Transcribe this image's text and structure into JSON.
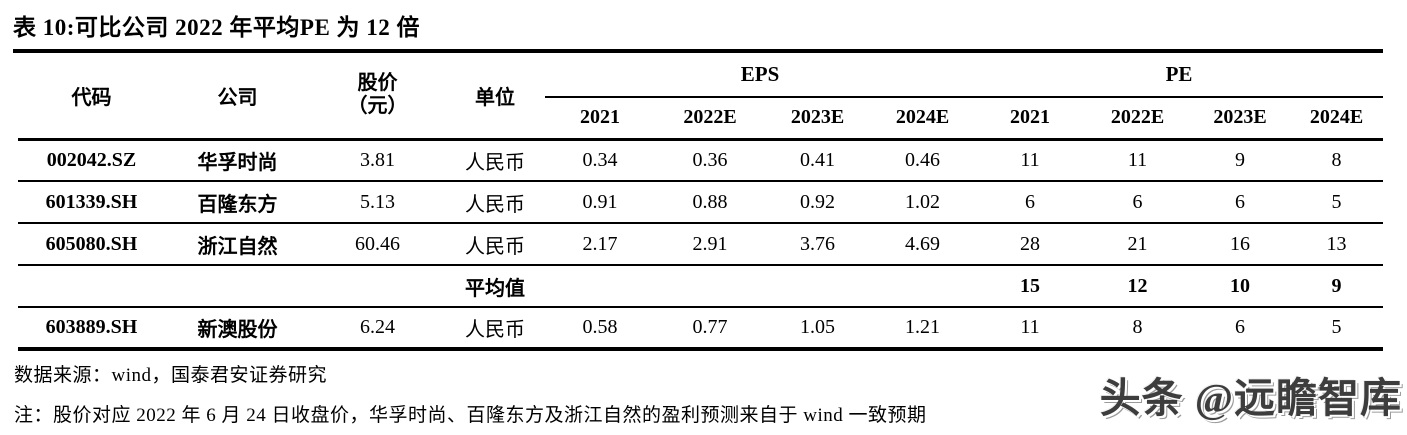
{
  "title": "表 10:可比公司 2022 年平均PE 为 12 倍",
  "table": {
    "headers": {
      "code": "代码",
      "company": "公司",
      "price_line1": "股价",
      "price_line2": "（元）",
      "unit": "单位",
      "eps_group": "EPS",
      "pe_group": "PE",
      "years": [
        "2021",
        "2022E",
        "2023E",
        "2024E"
      ]
    },
    "rows": [
      {
        "code": "002042.SZ",
        "company": "华孚时尚",
        "price": "3.81",
        "unit": "人民币",
        "eps": [
          "0.34",
          "0.36",
          "0.41",
          "0.46"
        ],
        "pe": [
          "11",
          "11",
          "9",
          "8"
        ]
      },
      {
        "code": "601339.SH",
        "company": "百隆东方",
        "price": "5.13",
        "unit": "人民币",
        "eps": [
          "0.91",
          "0.88",
          "0.92",
          "1.02"
        ],
        "pe": [
          "6",
          "6",
          "6",
          "5"
        ]
      },
      {
        "code": "605080.SH",
        "company": "浙江自然",
        "price": "60.46",
        "unit": "人民币",
        "eps": [
          "2.17",
          "2.91",
          "3.76",
          "4.69"
        ],
        "pe": [
          "28",
          "21",
          "16",
          "13"
        ]
      }
    ],
    "average_row": {
      "label": "平均值",
      "pe": [
        "15",
        "12",
        "10",
        "9"
      ]
    },
    "extra_row": {
      "code": "603889.SH",
      "company": "新澳股份",
      "price": "6.24",
      "unit": "人民币",
      "eps": [
        "0.58",
        "0.77",
        "1.05",
        "1.21"
      ],
      "pe": [
        "11",
        "8",
        "6",
        "5"
      ]
    }
  },
  "footer": {
    "source": "数据来源：wind，国泰君安证券研究",
    "note": "注：股价对应 2022 年 6 月 24 日收盘价，华孚时尚、百隆东方及浙江自然的盈利预测来自于 wind 一致预期"
  },
  "watermark": "头条 @远瞻智库",
  "colors": {
    "text": "#000000",
    "background": "#ffffff",
    "rule": "#000000",
    "watermark": "#3d3d3d"
  }
}
